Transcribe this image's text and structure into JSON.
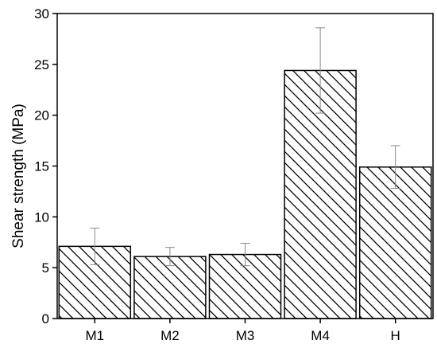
{
  "chart_data": {
    "type": "bar",
    "title": "",
    "xlabel": "",
    "ylabel": "Shear strength (MPa)",
    "ylim": [
      0,
      30
    ],
    "yticks": [
      0,
      5,
      10,
      15,
      20,
      25,
      30
    ],
    "categories": [
      "M1",
      "M2",
      "M3",
      "M4",
      "H"
    ],
    "values": [
      7.1,
      6.1,
      6.3,
      24.4,
      14.9
    ],
    "error_upper": [
      1.8,
      0.9,
      1.1,
      4.2,
      2.1
    ],
    "error_lower": [
      1.8,
      0.9,
      1.1,
      4.2,
      2.1
    ],
    "bar_fill": "hatched",
    "colors": {
      "bar_edge": "#000000",
      "hatch": "#000000",
      "error_bar": "#888888",
      "axis": "#000000"
    },
    "grid": false,
    "legend": "none"
  }
}
